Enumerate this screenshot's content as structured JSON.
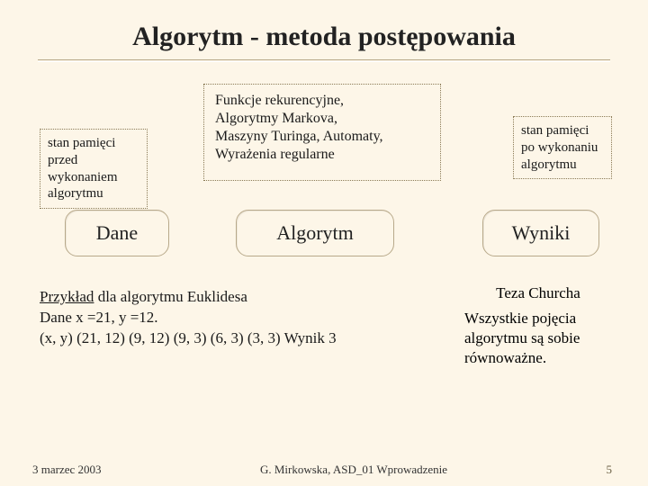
{
  "title": "Algorytm - metoda postępowania",
  "note_left": "stan pamięci przed wykonaniem algorytmu",
  "note_right": "stan pamięci po wykonaniu algorytmu",
  "center_list": "Funkcje rekurencyjne,\nAlgorytmy Markova,\nMaszyny Turinga,  Automaty,\nWyrażenia regularne",
  "big_dane": "Dane",
  "big_algo": "Algorytm",
  "big_wyn": "Wyniki",
  "example": {
    "line1_u": "Przykład",
    "line1_rest": " dla algorytmu Euklidesa",
    "line2": " Dane  x =21, y =12.",
    "line3": "(x, y)  (21, 12)  (9, 12)  (9, 3)  (6, 3)  (3, 3) Wynik  3"
  },
  "thesis": {
    "title": "Teza Churcha",
    "body": "Wszystkie pojęcia algorytmu są sobie równoważne."
  },
  "footer": {
    "date": "3 marzec  2003",
    "center": "G. Mirkowska, ASD_01  Wprowadzenie",
    "page": "5"
  },
  "colors": {
    "background": "#fdf6e8",
    "box_border": "#8a7a55",
    "rule": "#b8a98a",
    "text": "#1a1a1a"
  }
}
